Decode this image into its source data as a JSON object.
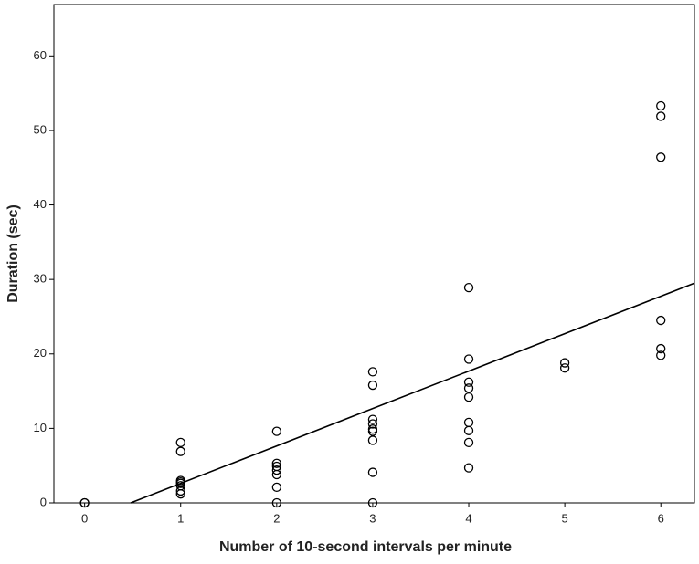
{
  "chart_data": {
    "type": "scatter",
    "x_label": "Number of 10-second intervals per minute",
    "y_label": "Duration (sec)",
    "xlim": [
      -0.32,
      6.35
    ],
    "ylim": [
      0,
      66.9
    ],
    "xticks": [
      0,
      1,
      2,
      3,
      4,
      5,
      6
    ],
    "yticks": [
      0,
      10,
      20,
      30,
      40,
      50,
      60
    ],
    "color": "#000000",
    "series": [
      {
        "x": [
          0,
          0,
          1,
          1,
          1,
          1,
          1,
          1,
          1,
          1,
          2,
          2,
          2,
          2,
          2,
          2,
          2,
          3,
          3,
          3,
          3,
          3,
          3,
          3,
          3,
          3,
          4,
          4,
          4,
          4,
          4,
          4,
          4,
          4,
          4,
          5,
          5,
          6,
          6,
          6,
          6,
          6,
          6
        ],
        "values": [
          0,
          0,
          8.1,
          6.9,
          3.0,
          2.8,
          2.6,
          2.3,
          1.6,
          1.2,
          9.6,
          5.3,
          4.9,
          4.4,
          3.8,
          2.1,
          0,
          17.6,
          15.8,
          11.2,
          10.6,
          9.9,
          9.6,
          8.4,
          4.1,
          0,
          28.9,
          19.3,
          16.2,
          15.4,
          14.2,
          10.8,
          9.7,
          8.1,
          4.7,
          18.8,
          18.1,
          53.3,
          51.9,
          46.4,
          24.5,
          20.7,
          19.8
        ]
      }
    ],
    "trend_line": {
      "x": [
        0.48,
        6.35
      ],
      "y": [
        0,
        29.5
      ]
    }
  }
}
